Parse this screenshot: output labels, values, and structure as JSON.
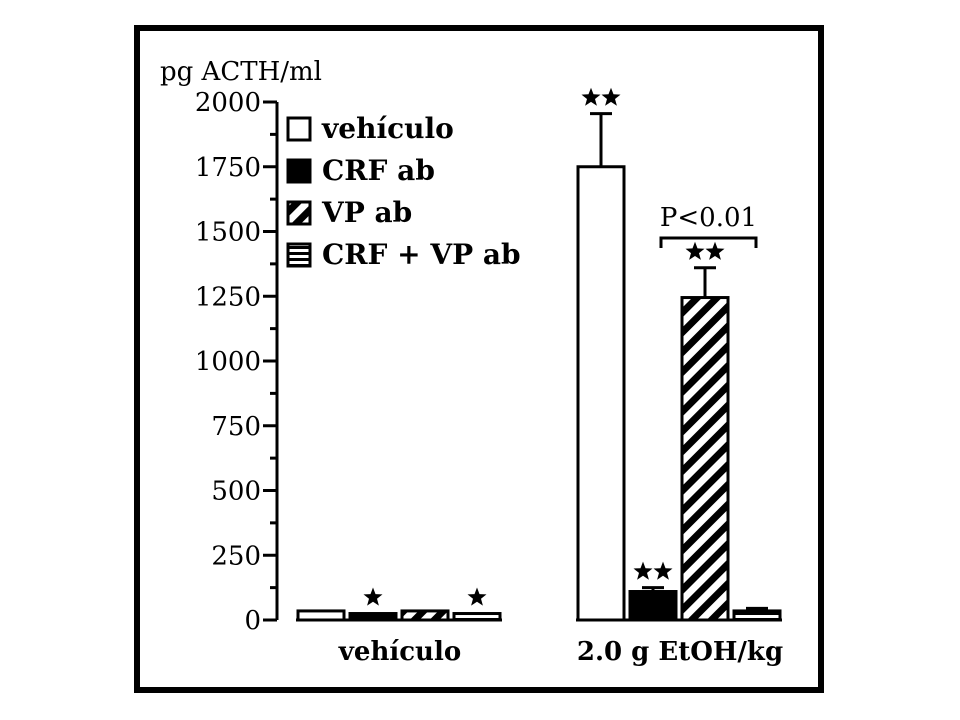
{
  "chart_data": {
    "type": "bar",
    "ylabel": "pg ACTH/ml",
    "ylim": [
      0,
      2000
    ],
    "yticks": [
      0,
      250,
      500,
      750,
      1000,
      1250,
      1500,
      1750,
      2000
    ],
    "categories": [
      "vehículo",
      "2.0 g EtOH/kg"
    ],
    "series": [
      {
        "name": "vehículo",
        "values": [
          35,
          1750
        ],
        "errors": [
          0,
          205
        ],
        "stars": [
          0,
          2
        ],
        "pattern": "open"
      },
      {
        "name": "CRF ab",
        "values": [
          25,
          110
        ],
        "errors": [
          0,
          15
        ],
        "stars": [
          1,
          2
        ],
        "pattern": "solid"
      },
      {
        "name": "VP ab",
        "values": [
          35,
          1245
        ],
        "errors": [
          0,
          115
        ],
        "stars": [
          0,
          2
        ],
        "pattern": "diagonal"
      },
      {
        "name": "CRF + VP ab",
        "values": [
          25,
          35
        ],
        "errors": [
          0,
          10
        ],
        "stars": [
          1,
          0
        ],
        "pattern": "horizontal"
      }
    ],
    "annotation": {
      "text": "P<0.01",
      "group": 1,
      "from_series": 1,
      "to_series": 2
    },
    "grid": false,
    "legend_position": "top-left"
  }
}
